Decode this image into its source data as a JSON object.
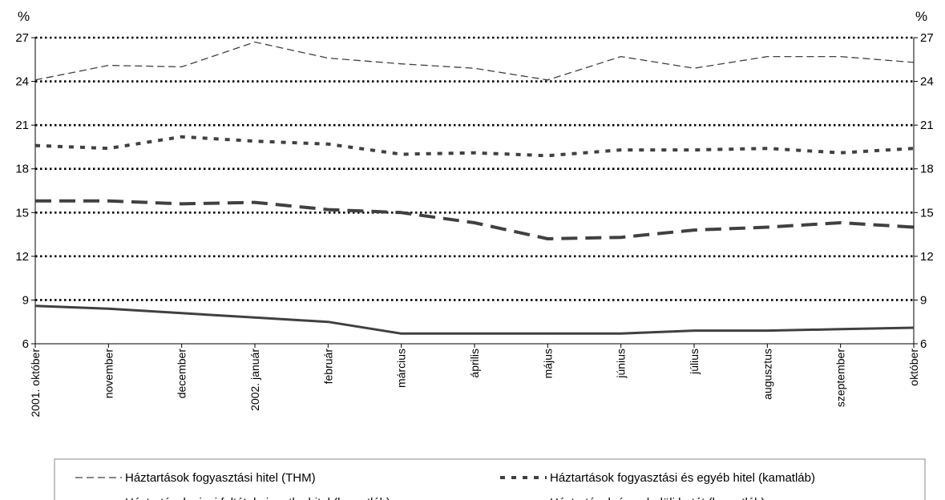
{
  "chart_data": {
    "type": "line",
    "unit_left": "%",
    "unit_right": "%",
    "ylim": [
      6,
      27
    ],
    "yticks": [
      6,
      9,
      12,
      15,
      18,
      21,
      24,
      27
    ],
    "grid": "horizontal dotted",
    "legend_placement": "bottom",
    "categories": [
      "2001. október",
      "november",
      "december",
      "2002. január",
      "február",
      "március",
      "április",
      "május",
      "június",
      "július",
      "augusztus",
      "szeptember",
      "október"
    ],
    "series": [
      {
        "name": "Háztartások fogyasztási hitel (THM)",
        "style": "thin-dash",
        "values": [
          24.1,
          25.1,
          25.0,
          26.7,
          25.6,
          25.2,
          24.9,
          24.1,
          25.7,
          24.9,
          25.7,
          25.7,
          25.3
        ]
      },
      {
        "name": "Háztartások fogyasztási és egyéb hitel (kamatláb)",
        "style": "dotted",
        "values": [
          19.6,
          19.4,
          20.2,
          19.9,
          19.7,
          19.0,
          19.1,
          18.9,
          19.3,
          19.3,
          19.4,
          19.1,
          19.4
        ]
      },
      {
        "name": "Háztartások piaci feltételu ingatlanhitel (kamatláb)",
        "style": "thick-dash",
        "values": [
          15.8,
          15.8,
          15.6,
          15.7,
          15.2,
          15.0,
          14.3,
          13.2,
          13.3,
          13.8,
          14.0,
          14.3,
          14.0
        ]
      },
      {
        "name": "Háztartások éven belüli betét (kamatláb)",
        "style": "solid",
        "values": [
          8.6,
          8.4,
          8.1,
          7.8,
          7.5,
          6.7,
          6.7,
          6.7,
          6.7,
          6.9,
          6.9,
          7.0,
          7.1
        ]
      }
    ],
    "colors": {
      "series": "#404040",
      "grid": "#000000",
      "axis": "#000000",
      "legend_border": "#8a8a8a"
    }
  }
}
